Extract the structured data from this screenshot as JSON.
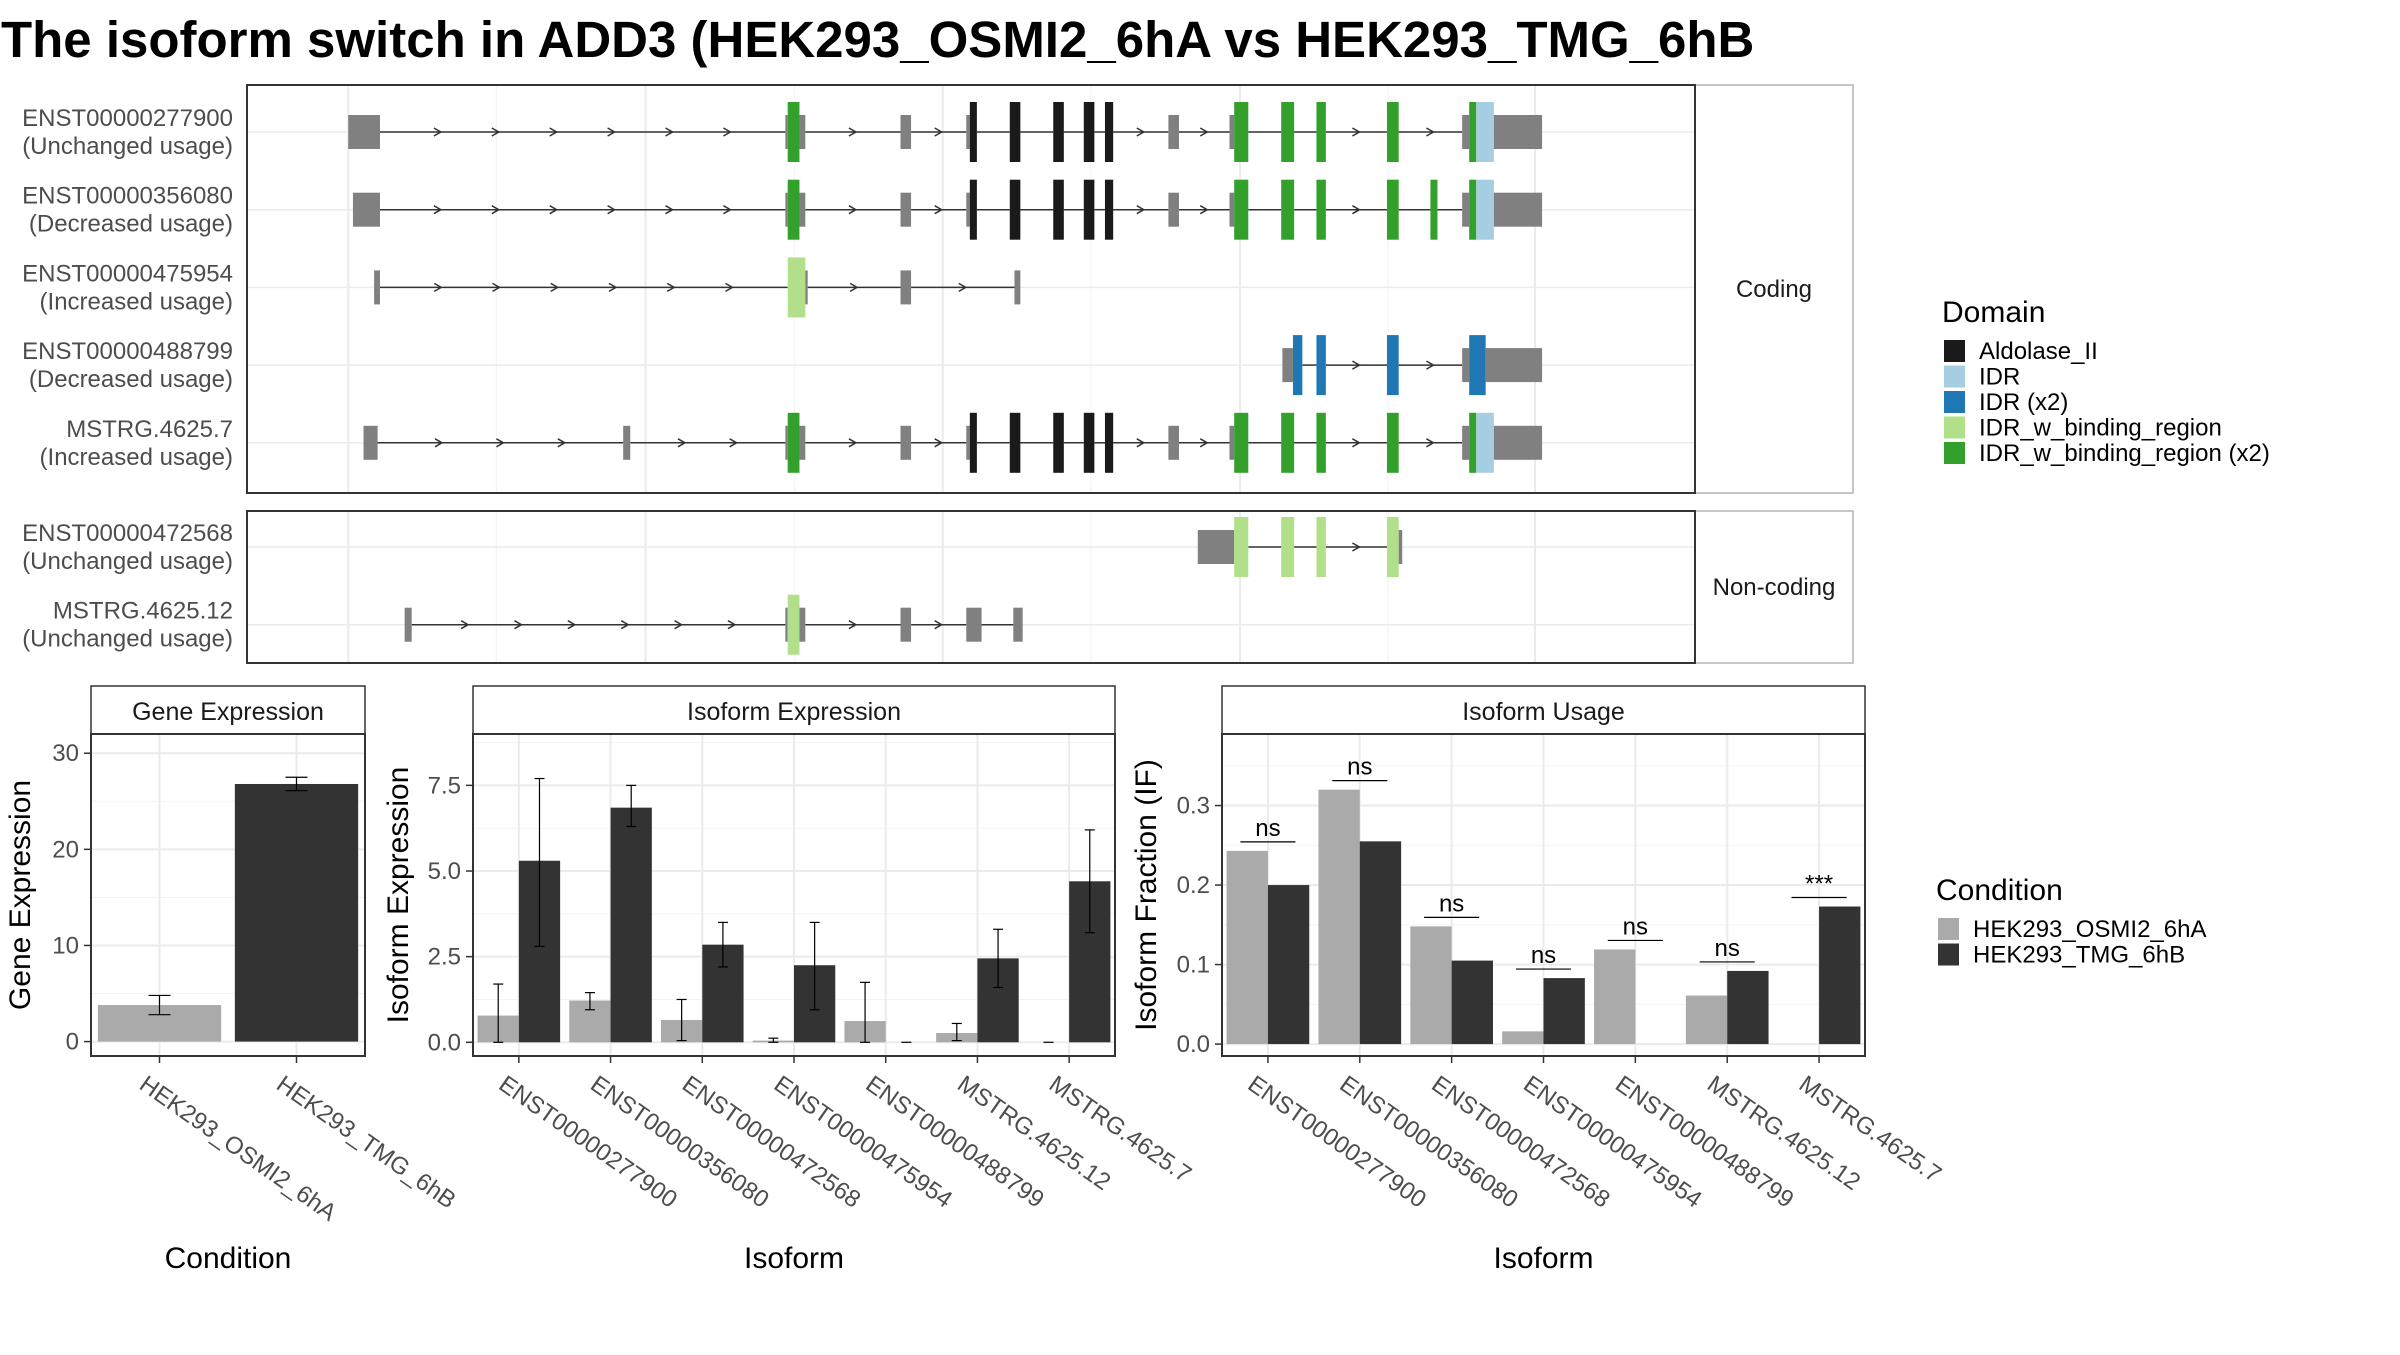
{
  "title": "The isoform switch in ADD3 (HEK293_OSMI2_6hA vs HEK293_TMG_6hB",
  "colors": {
    "Aldolase_II": "#1a1a1a",
    "IDR": "#a6cee3",
    "IDR (x2)": "#1f78b4",
    "IDR_w_binding_region": "#b2df8a",
    "IDR_w_binding_region (x2)": "#33a02c",
    "utr": "#808080",
    "condA": "#aaaaaa",
    "condB": "#333333"
  },
  "structure": {
    "groups": [
      {
        "label": "Coding",
        "tracks": [
          {
            "name": "ENST00000277900",
            "usage": "(Unchanged usage)",
            "exons": [
              [
                0.3,
                0.57,
                "utr"
              ],
              [
                4.02,
                4.04,
                "utr"
              ],
              [
                4.04,
                4.14,
                "IDR_w_binding_region (x2)"
              ],
              [
                4.14,
                4.19,
                "utr"
              ],
              [
                5.0,
                5.09,
                "utr"
              ],
              [
                5.56,
                5.59,
                "utr"
              ],
              [
                5.59,
                5.65,
                "Aldolase_II"
              ],
              [
                5.93,
                6.02,
                "Aldolase_II"
              ],
              [
                6.3,
                6.39,
                "Aldolase_II"
              ],
              [
                6.56,
                6.65,
                "Aldolase_II"
              ],
              [
                6.74,
                6.81,
                "Aldolase_II"
              ],
              [
                7.28,
                7.37,
                "utr"
              ],
              [
                7.8,
                7.84,
                "utr"
              ],
              [
                7.84,
                7.96,
                "IDR_w_binding_region (x2)"
              ],
              [
                8.24,
                8.35,
                "IDR_w_binding_region (x2)"
              ],
              [
                8.54,
                8.62,
                "IDR_w_binding_region (x2)"
              ],
              [
                9.14,
                9.24,
                "IDR_w_binding_region (x2)"
              ],
              [
                9.78,
                9.84,
                "utr"
              ],
              [
                9.84,
                9.9,
                "IDR_w_binding_region (x2)"
              ],
              [
                9.9,
                10.05,
                "IDR"
              ],
              [
                10.05,
                10.46,
                "utr"
              ]
            ],
            "introns": [
              [
                0.57,
                4.02
              ],
              [
                4.19,
                5.0
              ],
              [
                5.09,
                5.56
              ],
              [
                5.65,
                5.93
              ],
              [
                6.02,
                6.3
              ],
              [
                6.39,
                6.56
              ],
              [
                6.65,
                6.74
              ],
              [
                6.81,
                7.28
              ],
              [
                7.37,
                7.8
              ],
              [
                7.96,
                8.24
              ],
              [
                8.35,
                8.54
              ],
              [
                8.62,
                9.14
              ],
              [
                9.24,
                9.78
              ]
            ]
          },
          {
            "name": "ENST00000356080",
            "usage": "(Decreased usage)",
            "exons": [
              [
                0.34,
                0.57,
                "utr"
              ],
              [
                4.02,
                4.04,
                "utr"
              ],
              [
                4.04,
                4.14,
                "IDR_w_binding_region (x2)"
              ],
              [
                4.14,
                4.19,
                "utr"
              ],
              [
                5.0,
                5.09,
                "utr"
              ],
              [
                5.56,
                5.59,
                "utr"
              ],
              [
                5.59,
                5.65,
                "Aldolase_II"
              ],
              [
                5.93,
                6.02,
                "Aldolase_II"
              ],
              [
                6.3,
                6.39,
                "Aldolase_II"
              ],
              [
                6.56,
                6.65,
                "Aldolase_II"
              ],
              [
                6.74,
                6.81,
                "Aldolase_II"
              ],
              [
                7.28,
                7.37,
                "utr"
              ],
              [
                7.8,
                7.84,
                "utr"
              ],
              [
                7.84,
                7.96,
                "IDR_w_binding_region (x2)"
              ],
              [
                8.24,
                8.35,
                "IDR_w_binding_region (x2)"
              ],
              [
                8.54,
                8.62,
                "IDR_w_binding_region (x2)"
              ],
              [
                9.14,
                9.24,
                "IDR_w_binding_region (x2)"
              ],
              [
                9.51,
                9.57,
                "IDR_w_binding_region (x2)"
              ],
              [
                9.78,
                9.84,
                "utr"
              ],
              [
                9.84,
                9.9,
                "IDR_w_binding_region (x2)"
              ],
              [
                9.9,
                10.05,
                "IDR"
              ],
              [
                10.05,
                10.46,
                "utr"
              ]
            ],
            "introns": [
              [
                0.57,
                4.02
              ],
              [
                4.19,
                5.0
              ],
              [
                5.09,
                5.56
              ],
              [
                5.65,
                5.93
              ],
              [
                6.02,
                6.3
              ],
              [
                6.39,
                6.56
              ],
              [
                6.65,
                6.74
              ],
              [
                6.81,
                7.28
              ],
              [
                7.37,
                7.8
              ],
              [
                7.96,
                8.24
              ],
              [
                8.35,
                8.54
              ],
              [
                8.62,
                9.14
              ],
              [
                9.24,
                9.51
              ],
              [
                9.57,
                9.78
              ]
            ]
          },
          {
            "name": "ENST00000475954",
            "usage": "(Increased usage)",
            "exons": [
              [
                0.52,
                0.57,
                "utr"
              ],
              [
                4.04,
                4.19,
                "IDR_w_binding_region"
              ],
              [
                4.19,
                4.21,
                "utr"
              ],
              [
                5.0,
                5.09,
                "utr"
              ],
              [
                5.97,
                6.02,
                "utr"
              ]
            ],
            "introns": [
              [
                0.57,
                4.04
              ],
              [
                4.21,
                5.0
              ],
              [
                5.09,
                5.97
              ]
            ]
          },
          {
            "name": "ENST00000488799",
            "usage": "(Decreased usage)",
            "exons": [
              [
                8.25,
                8.34,
                "utr"
              ],
              [
                8.34,
                8.42,
                "IDR (x2)"
              ],
              [
                8.54,
                8.62,
                "IDR (x2)"
              ],
              [
                9.14,
                9.24,
                "IDR (x2)"
              ],
              [
                9.78,
                9.84,
                "utr"
              ],
              [
                9.84,
                9.98,
                "IDR (x2)"
              ],
              [
                9.98,
                10.46,
                "utr"
              ]
            ],
            "introns": [
              [
                8.42,
                8.54
              ],
              [
                8.62,
                9.14
              ],
              [
                9.24,
                9.78
              ]
            ]
          },
          {
            "name": "MSTRG.4625.7",
            "usage": "(Increased usage)",
            "exons": [
              [
                0.43,
                0.55,
                "utr"
              ],
              [
                2.64,
                2.7,
                "utr"
              ],
              [
                4.02,
                4.04,
                "utr"
              ],
              [
                4.04,
                4.14,
                "IDR_w_binding_region (x2)"
              ],
              [
                4.14,
                4.19,
                "utr"
              ],
              [
                5.0,
                5.09,
                "utr"
              ],
              [
                5.56,
                5.59,
                "utr"
              ],
              [
                5.59,
                5.65,
                "Aldolase_II"
              ],
              [
                5.93,
                6.02,
                "Aldolase_II"
              ],
              [
                6.3,
                6.39,
                "Aldolase_II"
              ],
              [
                6.56,
                6.65,
                "Aldolase_II"
              ],
              [
                6.74,
                6.81,
                "Aldolase_II"
              ],
              [
                7.28,
                7.37,
                "utr"
              ],
              [
                7.8,
                7.84,
                "utr"
              ],
              [
                7.84,
                7.96,
                "IDR_w_binding_region (x2)"
              ],
              [
                8.24,
                8.35,
                "IDR_w_binding_region (x2)"
              ],
              [
                8.54,
                8.62,
                "IDR_w_binding_region (x2)"
              ],
              [
                9.14,
                9.24,
                "IDR_w_binding_region (x2)"
              ],
              [
                9.78,
                9.84,
                "utr"
              ],
              [
                9.84,
                9.9,
                "IDR_w_binding_region (x2)"
              ],
              [
                9.9,
                10.05,
                "IDR"
              ],
              [
                10.05,
                10.46,
                "utr"
              ]
            ],
            "introns": [
              [
                0.55,
                2.64
              ],
              [
                2.7,
                4.02
              ],
              [
                4.19,
                5.0
              ],
              [
                5.09,
                5.56
              ],
              [
                5.65,
                5.93
              ],
              [
                6.02,
                6.3
              ],
              [
                6.39,
                6.56
              ],
              [
                6.65,
                6.74
              ],
              [
                6.81,
                7.28
              ],
              [
                7.37,
                7.8
              ],
              [
                7.96,
                8.24
              ],
              [
                8.35,
                8.54
              ],
              [
                8.62,
                9.14
              ],
              [
                9.24,
                9.78
              ]
            ]
          }
        ]
      },
      {
        "label": "Non-coding",
        "tracks": [
          {
            "name": "ENST00000472568",
            "usage": "(Unchanged usage)",
            "exons": [
              [
                7.53,
                7.8,
                "utr"
              ],
              [
                7.8,
                7.84,
                "utr"
              ],
              [
                7.84,
                7.96,
                "IDR_w_binding_region"
              ],
              [
                8.24,
                8.35,
                "IDR_w_binding_region"
              ],
              [
                8.54,
                8.62,
                "IDR_w_binding_region"
              ],
              [
                9.14,
                9.24,
                "IDR_w_binding_region"
              ],
              [
                9.24,
                9.27,
                "utr"
              ]
            ],
            "introns": [
              [
                7.96,
                8.24
              ],
              [
                8.35,
                8.54
              ],
              [
                8.62,
                9.14
              ]
            ]
          },
          {
            "name": "MSTRG.4625.12",
            "usage": "(Unchanged usage)",
            "exons": [
              [
                0.78,
                0.84,
                "utr"
              ],
              [
                4.02,
                4.04,
                "utr"
              ],
              [
                4.04,
                4.14,
                "IDR_w_binding_region"
              ],
              [
                4.14,
                4.19,
                "utr"
              ],
              [
                5.0,
                5.09,
                "utr"
              ],
              [
                5.56,
                5.69,
                "utr"
              ],
              [
                5.96,
                6.04,
                "utr"
              ]
            ],
            "introns": [
              [
                0.84,
                4.02
              ],
              [
                4.19,
                5.0
              ],
              [
                5.09,
                5.56
              ],
              [
                5.69,
                5.96
              ]
            ]
          }
        ]
      }
    ]
  },
  "legend_domain": {
    "title": "Domain",
    "items": [
      {
        "label": "Aldolase_II",
        "color": "#1a1a1a"
      },
      {
        "label": "IDR",
        "color": "#a6cee3"
      },
      {
        "label": "IDR (x2)",
        "color": "#1f78b4"
      },
      {
        "label": "IDR_w_binding_region",
        "color": "#b2df8a"
      },
      {
        "label": "IDR_w_binding_region (x2)",
        "color": "#33a02c"
      }
    ]
  },
  "legend_condition": {
    "title": "Condition",
    "items": [
      {
        "label": "HEK293_OSMI2_6hA",
        "color": "#aaaaaa"
      },
      {
        "label": "HEK293_TMG_6hB",
        "color": "#333333"
      }
    ]
  },
  "chart_data": [
    {
      "type": "bar",
      "title": "Gene Expression",
      "xlabel": "Condition",
      "ylabel": "Gene Expression",
      "ylim": [
        -1.5,
        32
      ],
      "yticks": [
        0,
        10,
        20,
        30
      ],
      "categories": [
        "HEK293_OSMI2_6hA",
        "HEK293_TMG_6hB"
      ],
      "values": [
        3.8,
        26.8
      ],
      "errors": [
        [
          2.8,
          4.8
        ],
        [
          26.1,
          27.5
        ]
      ]
    },
    {
      "type": "bar",
      "title": "Isoform Expression",
      "xlabel": "Isoform",
      "ylabel": "Isoform Expression",
      "ylim": [
        -0.4,
        9.0
      ],
      "yticks": [
        0.0,
        2.5,
        5.0,
        7.5
      ],
      "ytick_labels": [
        "0.0",
        "2.5",
        "5.0",
        "7.5"
      ],
      "categories": [
        "ENST00000277900",
        "ENST00000356080",
        "ENST00000472568",
        "ENST00000475954",
        "ENST00000488799",
        "MSTRG.4625.12",
        "MSTRG.4625.7"
      ],
      "series": [
        {
          "name": "HEK293_OSMI2_6hA",
          "values": [
            0.78,
            1.22,
            0.65,
            0.05,
            0.62,
            0.27,
            0.0
          ],
          "errors": [
            [
              0.0,
              1.7
            ],
            [
              0.95,
              1.45
            ],
            [
              0.05,
              1.25
            ],
            [
              0.0,
              0.12
            ],
            [
              0.0,
              1.75
            ],
            [
              0.05,
              0.55
            ],
            [
              0.0,
              0.0
            ]
          ]
        },
        {
          "name": "HEK293_TMG_6hB",
          "values": [
            5.3,
            6.85,
            2.85,
            2.25,
            0.0,
            2.45,
            4.7
          ],
          "errors": [
            [
              2.8,
              7.7
            ],
            [
              6.3,
              7.5
            ],
            [
              2.2,
              3.5
            ],
            [
              0.95,
              3.5
            ],
            [
              0.0,
              0.0
            ],
            [
              1.6,
              3.3
            ],
            [
              3.2,
              6.2
            ]
          ]
        }
      ]
    },
    {
      "type": "bar",
      "title": "Isoform Usage",
      "xlabel": "Isoform",
      "ylabel": "Isoform Fraction (IF)",
      "ylim": [
        -0.015,
        0.39
      ],
      "yticks": [
        0.0,
        0.1,
        0.2,
        0.3
      ],
      "ytick_labels": [
        "0.0",
        "0.1",
        "0.2",
        "0.3"
      ],
      "categories": [
        "ENST00000277900",
        "ENST00000356080",
        "ENST00000472568",
        "ENST00000475954",
        "ENST00000488799",
        "MSTRG.4625.12",
        "MSTRG.4625.7"
      ],
      "series": [
        {
          "name": "HEK293_OSMI2_6hA",
          "values": [
            0.243,
            0.32,
            0.148,
            0.016,
            0.119,
            0.061,
            0.0
          ]
        },
        {
          "name": "HEK293_TMG_6hB",
          "values": [
            0.2,
            0.255,
            0.105,
            0.083,
            0.0,
            0.092,
            0.173
          ]
        }
      ],
      "significance": [
        "ns",
        "ns",
        "ns",
        "ns",
        "ns",
        "ns",
        "***"
      ]
    }
  ]
}
